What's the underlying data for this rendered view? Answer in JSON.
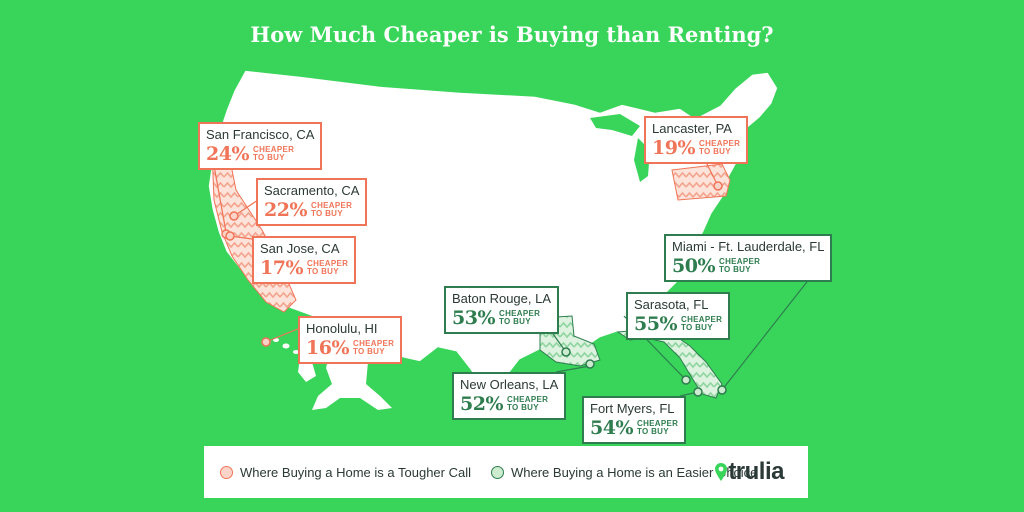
{
  "title": "How Much Cheaper is Buying than Renting?",
  "colors": {
    "background": "#39d55a",
    "tougher": "#f07457",
    "easier": "#2e7d4f",
    "tougher_fill": "#fbd4c9",
    "easier_fill": "#cdeccf"
  },
  "callouts": [
    {
      "city": "San Francisco, CA",
      "pct": "24%",
      "line1": "CHEAPER",
      "line2": "TO BUY",
      "kind": "tougher"
    },
    {
      "city": "Sacramento, CA",
      "pct": "22%",
      "line1": "CHEAPER",
      "line2": "TO BUY",
      "kind": "tougher"
    },
    {
      "city": "San Jose, CA",
      "pct": "17%",
      "line1": "CHEAPER",
      "line2": "TO BUY",
      "kind": "tougher"
    },
    {
      "city": "Honolulu, HI",
      "pct": "16%",
      "line1": "CHEAPER",
      "line2": "TO BUY",
      "kind": "tougher"
    },
    {
      "city": "Lancaster, PA",
      "pct": "19%",
      "line1": "CHEAPER",
      "line2": "TO BUY",
      "kind": "tougher"
    },
    {
      "city": "Miami - Ft. Lauderdale, FL",
      "pct": "50%",
      "line1": "CHEAPER",
      "line2": "TO BUY",
      "kind": "easier"
    },
    {
      "city": "Sarasota, FL",
      "pct": "55%",
      "line1": "CHEAPER",
      "line2": "TO BUY",
      "kind": "easier"
    },
    {
      "city": "Baton Rouge, LA",
      "pct": "53%",
      "line1": "CHEAPER",
      "line2": "TO BUY",
      "kind": "easier"
    },
    {
      "city": "New Orleans, LA",
      "pct": "52%",
      "line1": "CHEAPER",
      "line2": "TO BUY",
      "kind": "easier"
    },
    {
      "city": "Fort Myers, FL",
      "pct": "54%",
      "line1": "CHEAPER",
      "line2": "TO BUY",
      "kind": "easier"
    }
  ],
  "legend": {
    "tougher_label": "Where Buying a Home is a Tougher Call",
    "easier_label": "Where Buying a Home is an Easier Choice",
    "brand": "trulia",
    "brand_icon": "map-pin-icon"
  }
}
